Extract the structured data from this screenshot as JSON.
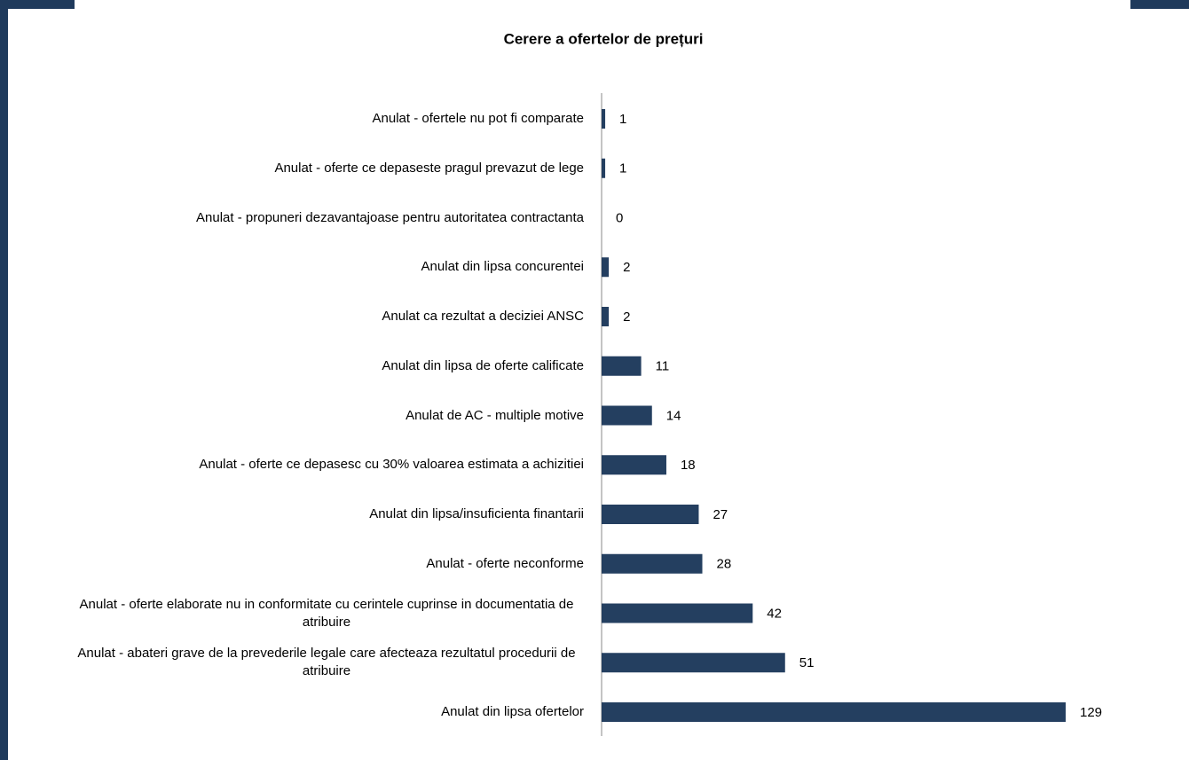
{
  "chart_data": {
    "type": "barh",
    "title": "Cerere a ofertelor de prețuri",
    "categories": [
      "Anulat - ofertele nu pot fi comparate",
      "Anulat - oferte ce depaseste pragul prevazut de lege",
      "Anulat - propuneri dezavantajoase pentru autoritatea contractanta",
      "Anulat din lipsa concurentei",
      "Anulat ca rezultat a deciziei ANSC",
      "Anulat din lipsa de oferte calificate",
      "Anulat de AC - multiple motive",
      "Anulat - oferte ce depasesc cu 30% valoarea estimata a achizitiei",
      "Anulat din lipsa/insuficienta finantarii",
      "Anulat - oferte neconforme",
      "Anulat - oferte elaborate nu in conformitate cu cerintele cuprinse in documentatia de atribuire",
      "Anulat - abateri grave de la prevederile legale care afecteaza rezultatul procedurii de atribuire",
      "Anulat din lipsa ofertelor"
    ],
    "values": [
      1,
      1,
      0,
      2,
      2,
      11,
      14,
      18,
      27,
      28,
      42,
      51,
      129
    ],
    "color": "#243f60"
  }
}
